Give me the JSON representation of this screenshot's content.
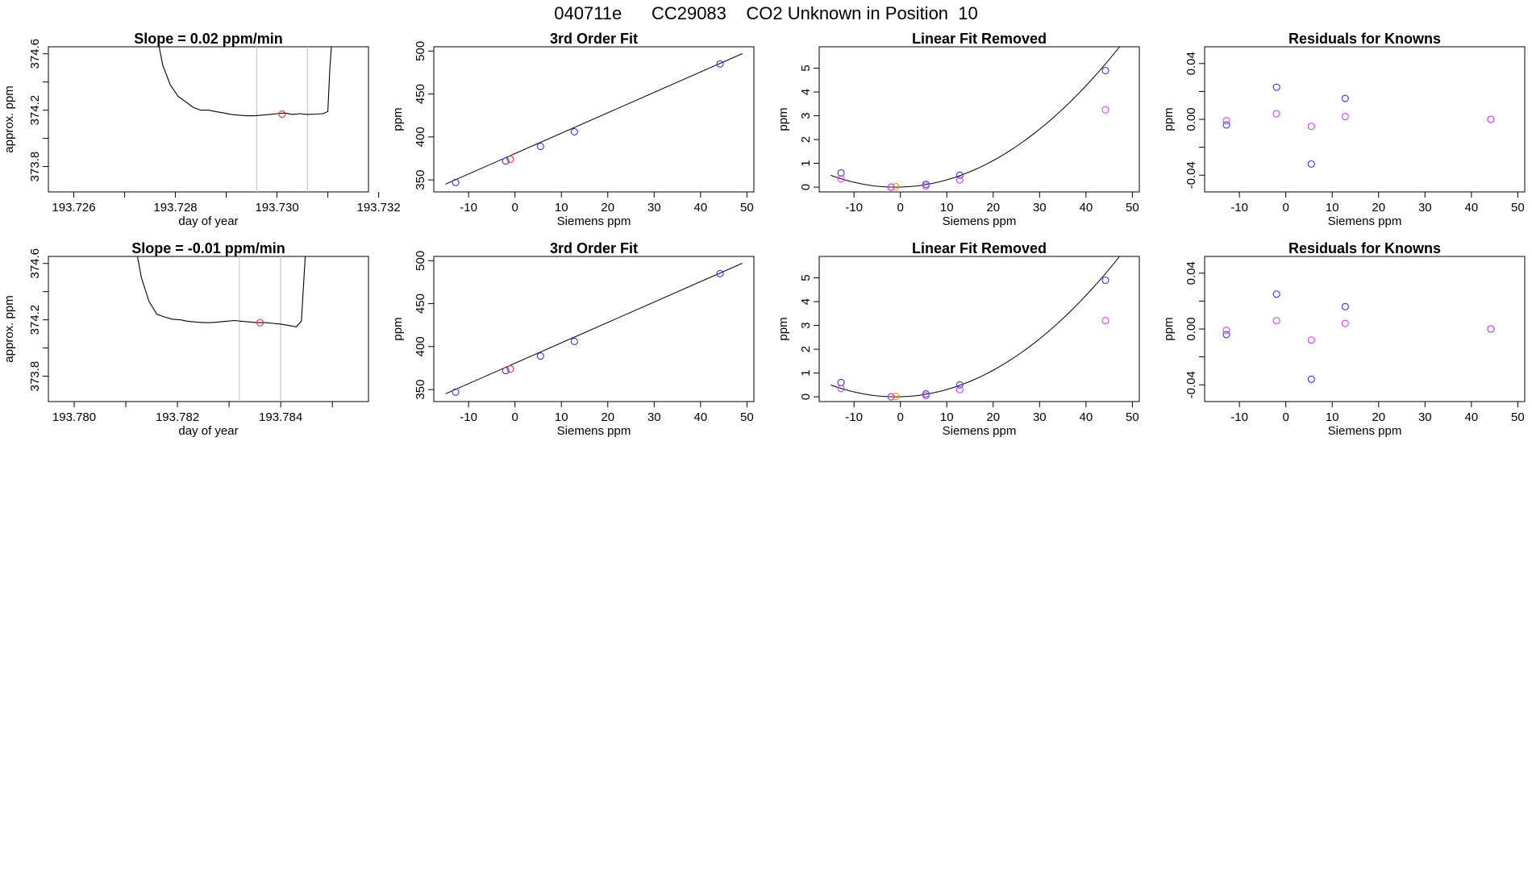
{
  "page": {
    "title": "040711e      CC29083    CO2 Unknown in Position  10"
  },
  "colors": {
    "axis": "#000000",
    "line": "#000000",
    "vline": "#c8c8c8",
    "blue": "#3333dd",
    "magenta": "#cc44ee",
    "red": "#dd3333",
    "orange": "#ff8800",
    "purple": "#7722bb"
  },
  "chart_data": [
    {
      "type": "line",
      "row": 0,
      "col": 0,
      "title": "Slope =  0.02  ppm/min",
      "xlabel": "day of year",
      "ylabel": "approx. ppm",
      "xlim": [
        193.7255,
        193.7318
      ],
      "ylim": [
        373.62,
        374.65
      ],
      "xticks": [
        193.726,
        193.727,
        193.728,
        193.729,
        193.73,
        193.731,
        193.732
      ],
      "xtick_labels": [
        "193.726",
        "",
        "193.728",
        "",
        "193.730",
        "",
        "193.732"
      ],
      "yticks": [
        373.8,
        374.0,
        374.2,
        374.4,
        374.6
      ],
      "ytick_labels": [
        "373.8",
        "",
        "374.2",
        "",
        "374.6"
      ],
      "series": [
        {
          "kind": "line",
          "x": [
            193.7276,
            193.72775,
            193.7279,
            193.72805,
            193.7282,
            193.72835,
            193.7285,
            193.72865,
            193.7288,
            193.72895,
            193.7291,
            193.72925,
            193.7294,
            193.72955,
            193.7297,
            193.72985,
            193.73,
            193.73015,
            193.7303,
            193.73045,
            193.7306,
            193.73075,
            193.7309,
            193.731,
            193.73104,
            193.7311
          ],
          "y": [
            374.8,
            374.52,
            374.38,
            374.3,
            374.26,
            374.22,
            374.2,
            374.2,
            374.19,
            374.18,
            374.17,
            374.165,
            374.16,
            374.16,
            374.165,
            374.17,
            374.175,
            374.18,
            374.17,
            374.175,
            374.17,
            374.172,
            374.175,
            374.19,
            374.5,
            374.8
          ]
        }
      ],
      "vlines": [
        193.7296,
        193.7306
      ],
      "highlight_points": [
        {
          "x": 193.7301,
          "y": 374.172,
          "color": "red"
        }
      ]
    },
    {
      "type": "scatter",
      "row": 0,
      "col": 1,
      "title": "3rd Order Fit",
      "xlabel": "Siemens ppm",
      "ylabel": "ppm",
      "xlim": [
        -17.5,
        51.5
      ],
      "ylim": [
        336,
        505
      ],
      "xticks": [
        -10,
        0,
        10,
        20,
        30,
        40,
        50
      ],
      "xtick_labels": [
        "-10",
        "0",
        "10",
        "20",
        "30",
        "40",
        "50"
      ],
      "yticks": [
        350,
        400,
        450,
        500
      ],
      "ytick_labels": [
        "350",
        "400",
        "450",
        "500"
      ],
      "curve": {
        "x": [
          -15,
          49
        ],
        "y": [
          345,
          497
        ]
      },
      "series": [
        {
          "kind": "points",
          "color": "blue",
          "x": [
            -12.8,
            -2.0,
            5.5,
            12.8,
            44.2
          ],
          "y": [
            347,
            372,
            389,
            406,
            485
          ]
        },
        {
          "kind": "points",
          "color": "red",
          "x": [
            -1.0
          ],
          "y": [
            374
          ]
        }
      ]
    },
    {
      "type": "scatter",
      "row": 0,
      "col": 2,
      "title": "Linear Fit Removed",
      "xlabel": "Siemens ppm",
      "ylabel": "ppm",
      "xlim": [
        -17.5,
        51.5
      ],
      "ylim": [
        -0.2,
        5.9
      ],
      "xticks": [
        -10,
        0,
        10,
        20,
        30,
        40,
        50
      ],
      "xtick_labels": [
        "-10",
        "0",
        "10",
        "20",
        "30",
        "40",
        "50"
      ],
      "yticks": [
        0,
        1,
        2,
        3,
        4,
        5
      ],
      "ytick_labels": [
        "0",
        "1",
        "2",
        "3",
        "4",
        "5"
      ],
      "curve": {
        "quadratic": [
          0.002535,
          0.00507,
          0.00254
        ],
        "x": [
          -15,
          49
        ]
      },
      "series": [
        {
          "kind": "points",
          "color": "blue",
          "x": [
            -12.8,
            -2.0,
            5.5,
            12.8,
            44.2
          ],
          "y": [
            0.6,
            0.0,
            0.12,
            0.5,
            4.9
          ]
        },
        {
          "kind": "points",
          "color": "magenta",
          "x": [
            -12.8,
            -2.0,
            5.5,
            12.8,
            44.2
          ],
          "y": [
            0.35,
            0.0,
            0.05,
            0.3,
            3.25
          ]
        },
        {
          "kind": "points",
          "color": "orange",
          "x": [
            -1.0
          ],
          "y": [
            0.02
          ]
        }
      ]
    },
    {
      "type": "scatter",
      "row": 0,
      "col": 3,
      "title": "Residuals for Knowns",
      "xlabel": "Siemens ppm",
      "ylabel": "ppm",
      "xlim": [
        -17.5,
        51.5
      ],
      "ylim": [
        -0.052,
        0.052
      ],
      "xticks": [
        -10,
        0,
        10,
        20,
        30,
        40,
        50
      ],
      "xtick_labels": [
        "-10",
        "0",
        "10",
        "20",
        "30",
        "40",
        "50"
      ],
      "yticks": [
        -0.04,
        -0.02,
        0.0,
        0.02,
        0.04
      ],
      "ytick_labels": [
        "-0.04",
        "",
        "0.00",
        "",
        "0.04"
      ],
      "series": [
        {
          "kind": "points",
          "color": "blue",
          "x": [
            -12.8,
            -2.0,
            5.5,
            12.8,
            44.2
          ],
          "y": [
            -0.004,
            0.023,
            -0.032,
            0.015,
            0.0
          ]
        },
        {
          "kind": "points",
          "color": "magenta",
          "x": [
            -12.8,
            -2.0,
            5.5,
            12.8,
            44.2
          ],
          "y": [
            -0.001,
            0.004,
            -0.005,
            0.002,
            0.0
          ]
        }
      ]
    },
    {
      "type": "line",
      "row": 1,
      "col": 0,
      "title": "Slope =  -0.01  ppm/min",
      "xlabel": "day of year",
      "ylabel": "approx. ppm",
      "xlim": [
        193.7795,
        193.7857
      ],
      "ylim": [
        373.62,
        374.65
      ],
      "xticks": [
        193.78,
        193.781,
        193.782,
        193.783,
        193.784,
        193.785
      ],
      "xtick_labels": [
        "193.780",
        "",
        "193.782",
        "",
        "193.784",
        ""
      ],
      "yticks": [
        373.8,
        374.0,
        374.2,
        374.4,
        374.6
      ],
      "ytick_labels": [
        "373.8",
        "",
        "374.2",
        "",
        "374.6"
      ],
      "series": [
        {
          "kind": "line",
          "x": [
            193.78115,
            193.7813,
            193.78145,
            193.7816,
            193.78175,
            193.7819,
            193.78205,
            193.7822,
            193.78235,
            193.7825,
            193.78265,
            193.7828,
            193.78295,
            193.7831,
            193.78325,
            193.7834,
            193.78355,
            193.7837,
            193.78385,
            193.784,
            193.78415,
            193.7843,
            193.7844,
            193.78445,
            193.7845
          ],
          "y": [
            374.8,
            374.5,
            374.33,
            374.24,
            374.22,
            374.205,
            374.2,
            374.19,
            374.185,
            374.18,
            374.18,
            374.185,
            374.19,
            374.195,
            374.19,
            374.185,
            374.18,
            374.18,
            374.175,
            374.17,
            374.16,
            374.15,
            374.19,
            374.5,
            374.8
          ]
        }
      ],
      "vlines": [
        193.7832,
        193.784
      ],
      "highlight_points": [
        {
          "x": 193.7836,
          "y": 374.18,
          "color": "red"
        }
      ]
    },
    {
      "type": "scatter",
      "row": 1,
      "col": 1,
      "title": "3rd Order Fit",
      "xlabel": "Siemens ppm",
      "ylabel": "ppm",
      "xlim": [
        -17.5,
        51.5
      ],
      "ylim": [
        336,
        505
      ],
      "xticks": [
        -10,
        0,
        10,
        20,
        30,
        40,
        50
      ],
      "xtick_labels": [
        "-10",
        "0",
        "10",
        "20",
        "30",
        "40",
        "50"
      ],
      "yticks": [
        350,
        400,
        450,
        500
      ],
      "ytick_labels": [
        "350",
        "400",
        "450",
        "500"
      ],
      "curve": {
        "x": [
          -15,
          49
        ],
        "y": [
          345,
          497
        ]
      },
      "series": [
        {
          "kind": "points",
          "color": "blue",
          "x": [
            -12.8,
            -2.0,
            5.5,
            12.8,
            44.2
          ],
          "y": [
            347,
            372,
            389,
            406,
            485
          ]
        },
        {
          "kind": "points",
          "color": "red",
          "x": [
            -1.0
          ],
          "y": [
            374
          ]
        }
      ]
    },
    {
      "type": "scatter",
      "row": 1,
      "col": 2,
      "title": "Linear Fit Removed",
      "xlabel": "Siemens ppm",
      "ylabel": "ppm",
      "xlim": [
        -17.5,
        51.5
      ],
      "ylim": [
        -0.2,
        5.9
      ],
      "xticks": [
        -10,
        0,
        10,
        20,
        30,
        40,
        50
      ],
      "xtick_labels": [
        "-10",
        "0",
        "10",
        "20",
        "30",
        "40",
        "50"
      ],
      "yticks": [
        0,
        1,
        2,
        3,
        4,
        5
      ],
      "ytick_labels": [
        "0",
        "1",
        "2",
        "3",
        "4",
        "5"
      ],
      "curve": {
        "quadratic": [
          0.002535,
          0.00507,
          0.00254
        ],
        "x": [
          -15,
          49
        ]
      },
      "series": [
        {
          "kind": "points",
          "color": "blue",
          "x": [
            -12.8,
            -2.0,
            5.5,
            12.8,
            44.2
          ],
          "y": [
            0.6,
            0.0,
            0.12,
            0.5,
            4.9
          ]
        },
        {
          "kind": "points",
          "color": "magenta",
          "x": [
            -12.8,
            -2.0,
            5.5,
            12.8,
            44.2
          ],
          "y": [
            0.35,
            0.0,
            0.05,
            0.3,
            3.2
          ]
        },
        {
          "kind": "points",
          "color": "orange",
          "x": [
            -1.0
          ],
          "y": [
            0.02
          ]
        }
      ]
    },
    {
      "type": "scatter",
      "row": 1,
      "col": 3,
      "title": "Residuals for Knowns",
      "xlabel": "Siemens ppm",
      "ylabel": "ppm",
      "xlim": [
        -17.5,
        51.5
      ],
      "ylim": [
        -0.052,
        0.052
      ],
      "xticks": [
        -10,
        0,
        10,
        20,
        30,
        40,
        50
      ],
      "xtick_labels": [
        "-10",
        "0",
        "10",
        "20",
        "30",
        "40",
        "50"
      ],
      "yticks": [
        -0.04,
        -0.02,
        0.0,
        0.02,
        0.04
      ],
      "ytick_labels": [
        "-0.04",
        "",
        "0.00",
        "",
        "0.04"
      ],
      "series": [
        {
          "kind": "points",
          "color": "blue",
          "x": [
            -12.8,
            -2.0,
            5.5,
            12.8,
            44.2
          ],
          "y": [
            -0.004,
            0.025,
            -0.036,
            0.016,
            0.0
          ]
        },
        {
          "kind": "points",
          "color": "magenta",
          "x": [
            -12.8,
            -2.0,
            5.5,
            12.8,
            44.2
          ],
          "y": [
            -0.001,
            0.006,
            -0.008,
            0.004,
            0.0
          ]
        }
      ]
    }
  ]
}
